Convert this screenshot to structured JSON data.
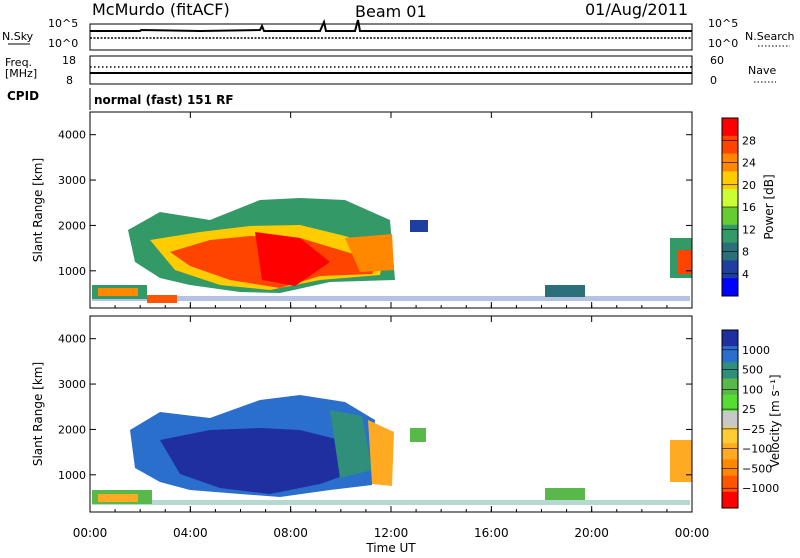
{
  "header": {
    "station": "McMurdo (fitACF)",
    "beam": "Beam 01",
    "date": "01/Aug/2011"
  },
  "mini_panels": {
    "nsky_label": "N.Sky",
    "nsearch_label": "N.Search",
    "noise_ticks_left": [
      "10^5",
      "10^0"
    ],
    "noise_ticks_right": [
      "10^5",
      "10^0"
    ],
    "freq_label_1": "Freq.",
    "freq_label_2": "[MHz]",
    "freq_ticks": [
      "18",
      "8"
    ],
    "nave_label": "Nave",
    "nave_ticks": [
      "60",
      "0"
    ],
    "cpid_label": "CPID",
    "cpid_text": "normal (fast) 151 RF"
  },
  "chart_data": [
    {
      "type": "heatmap",
      "name": "power",
      "xlabel": "Time UT",
      "ylabel": "Slant Range [km]",
      "x_ticks": [
        "00:00",
        "04:00",
        "08:00",
        "12:00",
        "16:00",
        "20:00",
        "00:00"
      ],
      "y_ticks": [
        "4000",
        "3000",
        "2000",
        "1000"
      ],
      "xlim": [
        0,
        24
      ],
      "ylim": [
        180,
        4500
      ],
      "colorbar_label": "Power [dB]",
      "colorbar_ticks": [
        "28",
        "24",
        "20",
        "16",
        "12",
        "8",
        "4"
      ],
      "colorbar_colors": [
        "#ff0000",
        "#ff4400",
        "#ff8800",
        "#ffcc00",
        "#ccff33",
        "#66cc33",
        "#339966",
        "#2a6f7a",
        "#1f3fa0",
        "#0000ff"
      ]
    },
    {
      "type": "heatmap",
      "name": "velocity",
      "xlabel": "Time UT",
      "ylabel": "Slant Range [km]",
      "x_ticks": [
        "00:00",
        "04:00",
        "08:00",
        "12:00",
        "16:00",
        "20:00",
        "00:00"
      ],
      "y_ticks": [
        "4000",
        "3000",
        "2000",
        "1000"
      ],
      "xlim": [
        0,
        24
      ],
      "ylim": [
        180,
        4500
      ],
      "colorbar_label": "Velocity [m s⁻¹]",
      "colorbar_ticks": [
        "1000",
        "500",
        "100",
        "25",
        "−25",
        "−100",
        "−500",
        "−1000"
      ],
      "colorbar_colors": [
        "#1f2fa0",
        "#2a6fcc",
        "#2f8f7a",
        "#58b84a",
        "#55dd33",
        "#c8c8c8",
        "#ffcc33",
        "#ffaa22",
        "#ff8800",
        "#ff5500",
        "#ff0000"
      ]
    }
  ]
}
